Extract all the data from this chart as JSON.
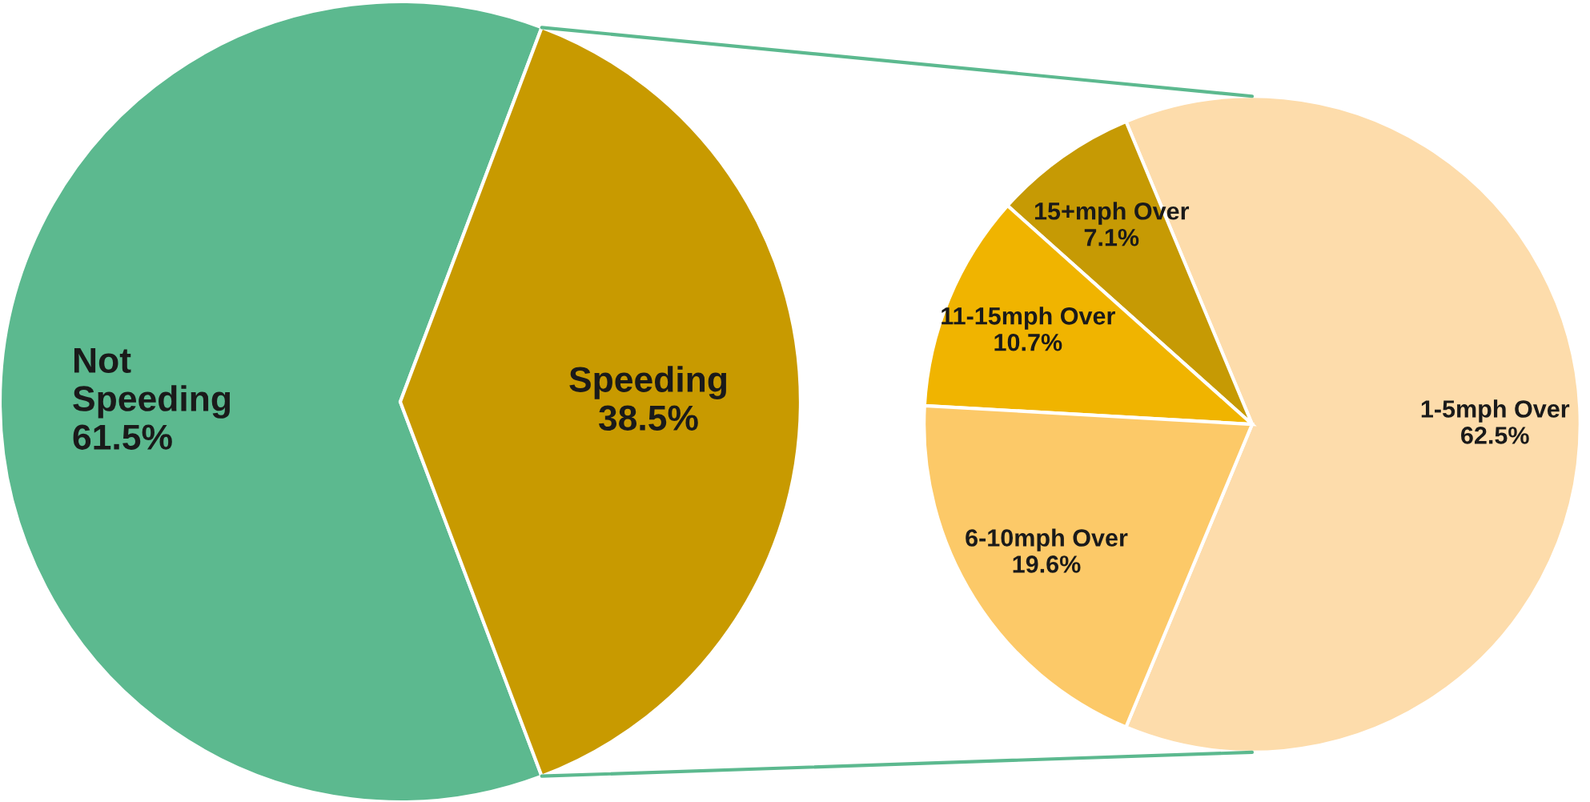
{
  "chart_data": [
    {
      "type": "pie",
      "categories": [
        "Not\nSpeeding",
        "Speeding"
      ],
      "values": [
        61.5,
        38.5
      ],
      "colors": [
        "#5cb98f",
        "#c89a00"
      ],
      "value_labels": [
        "61.5%",
        "38.5%"
      ]
    },
    {
      "type": "pie",
      "categories": [
        "1-5mph Over",
        "15+mph Over",
        "11-15mph Over",
        "6-10mph Over"
      ],
      "values": [
        62.5,
        7.1,
        10.7,
        19.6
      ],
      "colors": [
        "#fddcab",
        "#c69a04",
        "#f0b400",
        "#fcc968"
      ],
      "value_labels": [
        "62.5%",
        "7.1%",
        "10.7%",
        "19.6%"
      ]
    }
  ]
}
